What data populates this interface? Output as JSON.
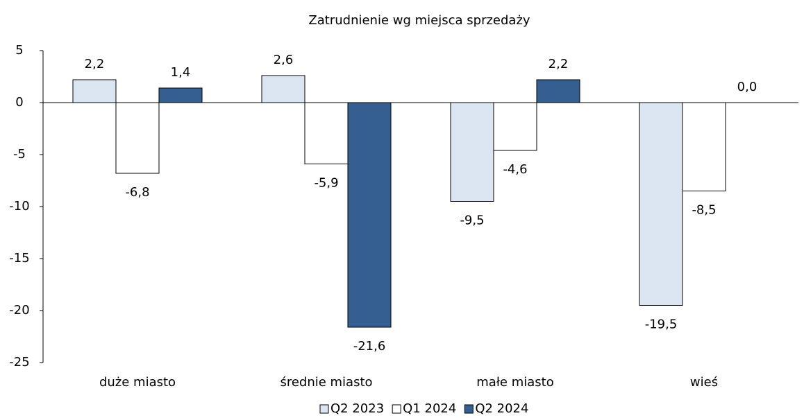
{
  "chart_data": {
    "type": "bar",
    "title": "Zatrudnienie wg miejsca sprzedaży",
    "categories": [
      "duże miasto",
      "średnie miasto",
      "małe miasto",
      "wieś"
    ],
    "series": [
      {
        "name": "Q2 2023",
        "color": "#dce6f2",
        "values": [
          2.2,
          2.6,
          -9.5,
          -19.5
        ],
        "value_labels": [
          "2,2",
          "2,6",
          "-9,5",
          "-19,5"
        ]
      },
      {
        "name": "Q1 2024",
        "color": "#ffffff",
        "values": [
          -6.8,
          -5.9,
          -4.6,
          -8.5
        ],
        "value_labels": [
          "-6,8",
          "-5,9",
          "-4,6",
          "-8,5"
        ]
      },
      {
        "name": "Q2 2024",
        "color": "#365f91",
        "values": [
          1.4,
          -21.6,
          2.2,
          0.0
        ],
        "value_labels": [
          "1,4",
          "-21,6",
          "2,2",
          "0,0"
        ]
      }
    ],
    "ylim": [
      -25,
      5
    ],
    "yticks": [
      5,
      0,
      -5,
      -10,
      -15,
      -20,
      -25
    ],
    "legend": "bottom"
  }
}
